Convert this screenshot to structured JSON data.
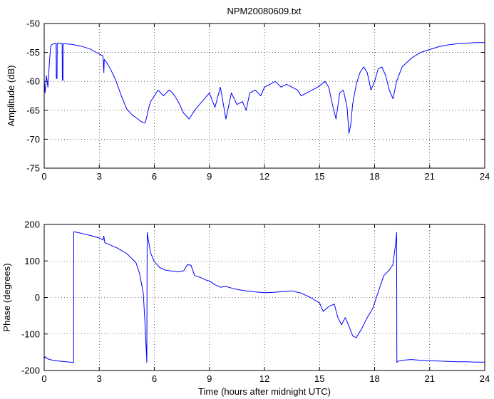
{
  "title": "NPM20080609.txt",
  "chart_data": [
    {
      "type": "line",
      "title": "NPM20080609.txt",
      "xlabel": "",
      "ylabel": "Amplitude (dB)",
      "xlim": [
        0,
        24
      ],
      "ylim": [
        -75,
        -50
      ],
      "xticks": [
        0,
        3,
        6,
        9,
        12,
        15,
        18,
        21,
        24
      ],
      "yticks": [
        -75,
        -70,
        -65,
        -60,
        -55,
        -50
      ],
      "grid": true,
      "line_color": "#0000ff",
      "series": [
        {
          "x": [
            0,
            0.05,
            0.12,
            0.2,
            0.28,
            0.35,
            0.4,
            0.5,
            0.6,
            0.65,
            0.66,
            0.7,
            0.71,
            0.8,
            0.9,
            0.98,
            0.99,
            1.02,
            1.03,
            1.1,
            1.5,
            2.0,
            2.5,
            3.0,
            3.2,
            3.25,
            3.27,
            3.35,
            3.6,
            3.9,
            4.2,
            4.5,
            4.8,
            5.1,
            5.3,
            5.5,
            5.6,
            5.7,
            5.8,
            6.0,
            6.2,
            6.5,
            6.8,
            7.0,
            7.3,
            7.6,
            7.9,
            8.2,
            8.6,
            9.0,
            9.3,
            9.6,
            9.9,
            10.2,
            10.5,
            10.8,
            11.0,
            11.2,
            11.5,
            11.8,
            12.0,
            12.3,
            12.6,
            12.9,
            13.2,
            13.5,
            13.8,
            14.0,
            14.3,
            14.6,
            14.9,
            15.1,
            15.3,
            15.5,
            15.7,
            15.9,
            16.1,
            16.3,
            16.5,
            16.6,
            16.7,
            16.8,
            17.0,
            17.2,
            17.4,
            17.6,
            17.8,
            18.0,
            18.2,
            18.4,
            18.6,
            18.8,
            19.0,
            19.2,
            19.5,
            20.0,
            20.5,
            21.0,
            21.5,
            22.0,
            22.5,
            23.0,
            23.5,
            24.0
          ],
          "values": [
            -60,
            -62,
            -59,
            -61,
            -57,
            -54,
            -53.7,
            -53.5,
            -53.5,
            -53.5,
            -59.5,
            -59.5,
            -53.4,
            -53.4,
            -53.4,
            -53.5,
            -59.8,
            -59.8,
            -53.5,
            -53.5,
            -53.6,
            -53.9,
            -54.4,
            -55.3,
            -55.6,
            -58.5,
            -56.2,
            -56.5,
            -57.8,
            -59.8,
            -62.5,
            -64.8,
            -65.8,
            -66.5,
            -67.0,
            -67.2,
            -66.0,
            -64.5,
            -63.5,
            -62.5,
            -61.5,
            -62.5,
            -61.5,
            -62.0,
            -63.5,
            -65.5,
            -66.5,
            -65.0,
            -63.5,
            -62.0,
            -64.5,
            -61.0,
            -66.5,
            -62.0,
            -64.0,
            -63.5,
            -65.0,
            -62.0,
            -61.5,
            -62.5,
            -61.0,
            -60.5,
            -60.0,
            -61.0,
            -60.5,
            -61.0,
            -61.5,
            -62.5,
            -62.0,
            -61.5,
            -61.0,
            -60.5,
            -60.0,
            -61.0,
            -64.0,
            -66.5,
            -62.0,
            -61.5,
            -64.5,
            -69.0,
            -67.5,
            -64.0,
            -60.5,
            -58.5,
            -57.5,
            -58.5,
            -61.5,
            -60.0,
            -57.8,
            -57.5,
            -59.0,
            -61.5,
            -63.0,
            -60.0,
            -57.5,
            -56.0,
            -55.0,
            -54.5,
            -54.0,
            -53.7,
            -53.5,
            -53.4,
            -53.3,
            -53.3
          ]
        }
      ]
    },
    {
      "type": "line",
      "title": "",
      "xlabel": "Time (hours after midnight UTC)",
      "ylabel": "Phase (degrees)",
      "xlim": [
        0,
        24
      ],
      "ylim": [
        -200,
        200
      ],
      "xticks": [
        0,
        3,
        6,
        9,
        12,
        15,
        18,
        21,
        24
      ],
      "yticks": [
        -200,
        -100,
        0,
        100,
        200
      ],
      "grid": true,
      "line_color": "#0000ff",
      "series": [
        {
          "x": [
            0,
            0.05,
            0.1,
            0.3,
            0.6,
            1.0,
            1.4,
            1.59,
            1.6,
            1.61,
            2.0,
            2.5,
            3.0,
            3.2,
            3.25,
            3.3,
            3.5,
            4.0,
            4.5,
            5.0,
            5.2,
            5.4,
            5.5,
            5.58,
            5.59,
            5.61,
            5.62,
            5.7,
            5.8,
            6.0,
            6.3,
            6.6,
            7.0,
            7.3,
            7.6,
            7.8,
            8.0,
            8.2,
            8.5,
            8.8,
            9.0,
            9.3,
            9.6,
            9.9,
            10.2,
            10.5,
            11.0,
            11.5,
            12.0,
            12.5,
            13.0,
            13.5,
            14.0,
            14.5,
            15.0,
            15.2,
            15.5,
            15.8,
            16.0,
            16.2,
            16.4,
            16.6,
            16.8,
            17.0,
            17.3,
            17.6,
            17.9,
            18.2,
            18.5,
            18.8,
            19.0,
            19.15,
            19.2,
            19.21,
            19.25,
            19.5,
            20.0,
            20.5,
            21.0,
            21.5,
            22.0,
            22.5,
            23.0,
            23.5,
            24.0
          ],
          "values": [
            -168,
            -162,
            -166,
            -170,
            -173,
            -175,
            -177,
            -178,
            -178,
            180,
            176,
            170,
            163,
            157,
            168,
            150,
            146,
            135,
            120,
            95,
            65,
            10,
            -80,
            -165,
            -178,
            178,
            175,
            150,
            122,
            98,
            82,
            75,
            72,
            70,
            73,
            90,
            88,
            60,
            55,
            48,
            45,
            35,
            28,
            30,
            26,
            22,
            18,
            15,
            13,
            14,
            16,
            18,
            12,
            0,
            -15,
            -38,
            -25,
            -18,
            -55,
            -75,
            -55,
            -78,
            -105,
            -110,
            -85,
            -55,
            -30,
            15,
            60,
            75,
            90,
            150,
            178,
            -178,
            -175,
            -172,
            -170,
            -172,
            -173,
            -174,
            -175,
            -176,
            -176,
            -177,
            -177
          ]
        }
      ]
    }
  ]
}
